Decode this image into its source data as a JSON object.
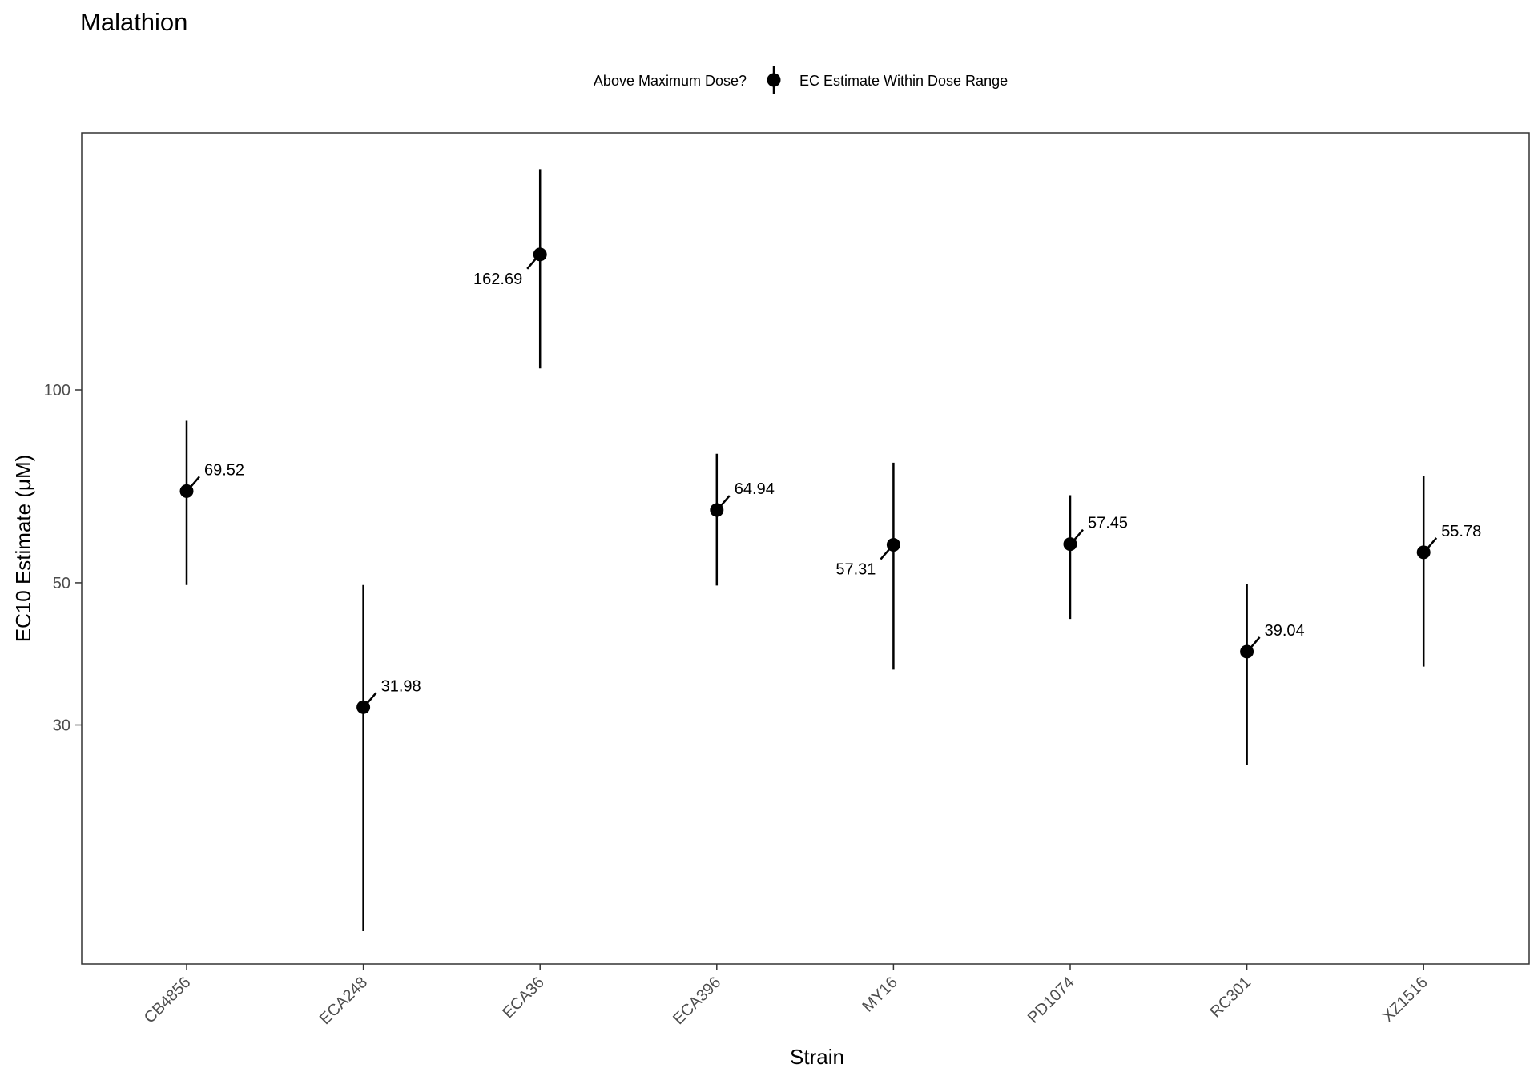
{
  "chart_data": {
    "type": "scatter",
    "title": "Malathion",
    "xlabel": "Strain",
    "ylabel": "EC10 Estimate (μM)",
    "y_scale": "log",
    "ylim": [
      14,
      240
    ],
    "yticks": [
      30,
      50,
      100
    ],
    "grid": false,
    "legend": {
      "title": "Above Maximum Dose?",
      "position": "top",
      "entries": [
        "EC Estimate Within Dose Range"
      ]
    },
    "categories": [
      "CB4856",
      "ECA248",
      "ECA36",
      "ECA396",
      "MY16",
      "PD1074",
      "RC301",
      "XZ1516"
    ],
    "series": [
      {
        "name": "EC Estimate Within Dose Range",
        "values": [
          69.52,
          31.98,
          162.69,
          64.94,
          57.31,
          57.45,
          39.04,
          55.78
        ],
        "lower": [
          49.6,
          14.3,
          108,
          49.5,
          36.6,
          43.9,
          26.0,
          37.0
        ],
        "upper": [
          89.5,
          49.6,
          221,
          79.5,
          77,
          68.5,
          49.8,
          73.5
        ],
        "labels": [
          "69.52",
          "31.98",
          "162.69",
          "64.94",
          "57.31",
          "57.45",
          "39.04",
          "55.78"
        ],
        "label_side": [
          "right",
          "right",
          "left",
          "right",
          "left",
          "right",
          "right",
          "right"
        ]
      }
    ],
    "colors": {
      "point": "#000000",
      "panel_border": "#333333",
      "axis_text": "#4d4d4d"
    }
  }
}
